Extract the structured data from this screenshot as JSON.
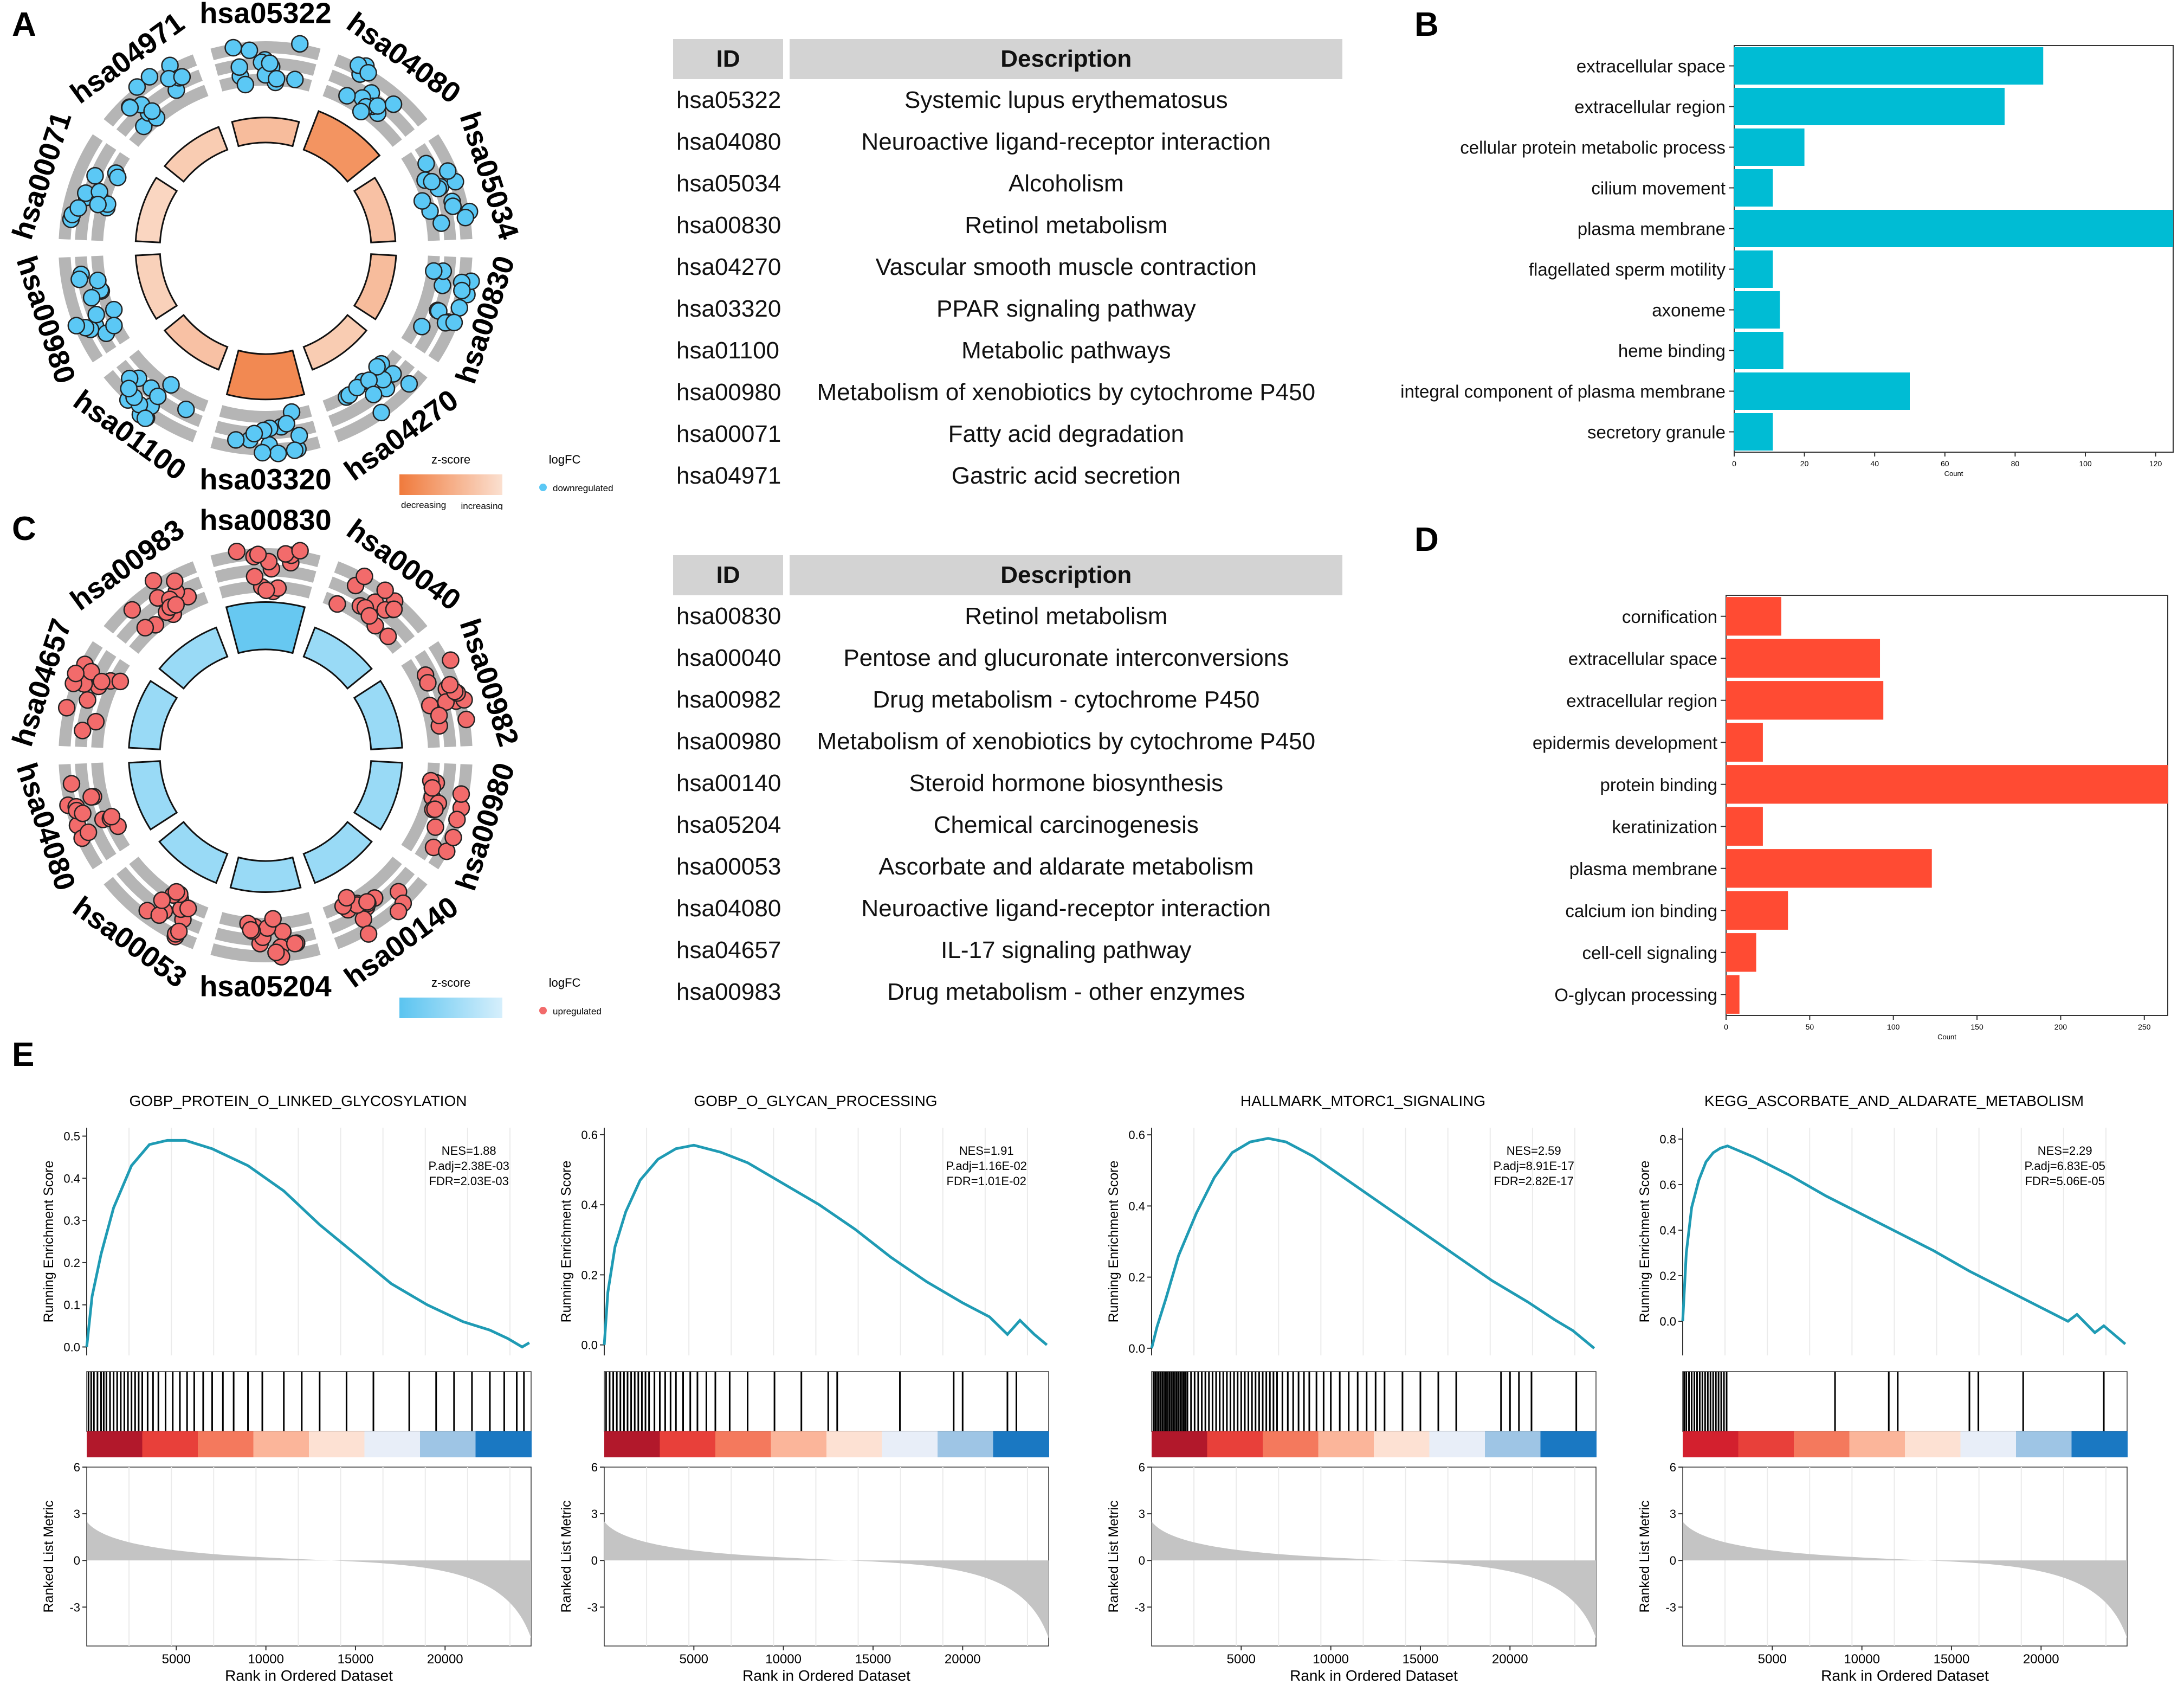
{
  "panel_letters": {
    "a": "A",
    "b": "B",
    "c": "C",
    "d": "D",
    "e": "E"
  },
  "circos_a": {
    "sectors": [
      "hsa05322",
      "hsa04080",
      "hsa05034",
      "hsa00830",
      "hsa04270",
      "hsa03320",
      "hsa01100",
      "hsa00980",
      "hsa00071",
      "hsa04971"
    ],
    "legend": {
      "zscore_label": "z-score",
      "logfc_label": "logFC",
      "decreasing": "decreasing",
      "increasing": "increasing",
      "point_label": "downregulated"
    },
    "colors": {
      "point": "#5bc8f5",
      "bar_light": "#fbe0d0",
      "bar_dark": "#f07a3c",
      "ring": "#b5b5b5"
    },
    "zscore_levels": [
      0.35,
      0.75,
      0.3,
      0.35,
      0.2,
      0.85,
      0.3,
      0.15,
      0.1,
      0.2
    ]
  },
  "circos_c": {
    "sectors": [
      "hsa00830",
      "hsa00040",
      "hsa00982",
      "hsa00980",
      "hsa00140",
      "hsa05204",
      "hsa00053",
      "hsa04080",
      "hsa04657",
      "hsa00983"
    ],
    "legend": {
      "zscore_label": "z-score",
      "logfc_label": "logFC",
      "decreasing": "decreasing",
      "increasing": "increasing",
      "point_label": "upregulated"
    },
    "colors": {
      "point": "#f26b6b",
      "bar_light": "#d6effc",
      "bar_dark": "#5bc4f0",
      "ring": "#b5b5b5"
    },
    "zscore_levels": [
      0.9,
      0.5,
      0.5,
      0.5,
      0.5,
      0.5,
      0.5,
      0.5,
      0.5,
      0.5
    ]
  },
  "table_a": {
    "headers": {
      "id": "ID",
      "description": "Description"
    },
    "rows": [
      {
        "id": "hsa05322",
        "desc": "Systemic lupus erythematosus"
      },
      {
        "id": "hsa04080",
        "desc": "Neuroactive ligand-receptor interaction"
      },
      {
        "id": "hsa05034",
        "desc": "Alcoholism"
      },
      {
        "id": "hsa00830",
        "desc": "Retinol metabolism"
      },
      {
        "id": "hsa04270",
        "desc": "Vascular smooth muscle contraction"
      },
      {
        "id": "hsa03320",
        "desc": "PPAR signaling pathway"
      },
      {
        "id": "hsa01100",
        "desc": "Metabolic pathways"
      },
      {
        "id": "hsa00980",
        "desc": "Metabolism of xenobiotics by cytochrome P450"
      },
      {
        "id": "hsa00071",
        "desc": "Fatty acid degradation"
      },
      {
        "id": "hsa04971",
        "desc": "Gastric acid secretion"
      }
    ]
  },
  "table_c": {
    "headers": {
      "id": "ID",
      "description": "Description"
    },
    "rows": [
      {
        "id": "hsa00830",
        "desc": "Retinol metabolism"
      },
      {
        "id": "hsa00040",
        "desc": "Pentose and glucuronate interconversions"
      },
      {
        "id": "hsa00982",
        "desc": "Drug metabolism - cytochrome P450"
      },
      {
        "id": "hsa00980",
        "desc": "Metabolism of xenobiotics by cytochrome P450"
      },
      {
        "id": "hsa00140",
        "desc": "Steroid hormone biosynthesis"
      },
      {
        "id": "hsa05204",
        "desc": "Chemical carcinogenesis"
      },
      {
        "id": "hsa00053",
        "desc": "Ascorbate and aldarate metabolism"
      },
      {
        "id": "hsa04080",
        "desc": "Neuroactive ligand-receptor interaction"
      },
      {
        "id": "hsa04657",
        "desc": "IL-17 signaling pathway"
      },
      {
        "id": "hsa00983",
        "desc": "Drug metabolism - other enzymes"
      }
    ]
  },
  "chart_data": [
    {
      "panel": "B",
      "type": "bar",
      "orientation": "horizontal",
      "categories": [
        "extracellular space",
        "extracellular region",
        "cellular protein metabolic process",
        "cilium movement",
        "plasma membrane",
        "flagellated sperm motility",
        "axoneme",
        "heme binding",
        "integral component of plasma membrane",
        "secretory granule"
      ],
      "values": [
        88,
        77,
        20,
        11,
        125,
        11,
        13,
        14,
        50,
        11
      ],
      "xlim": [
        0,
        125
      ],
      "xticks": [
        0,
        20,
        40,
        60,
        80,
        100,
        120
      ],
      "xlabel": "Count",
      "color": "#00bcd4"
    },
    {
      "panel": "D",
      "type": "bar",
      "orientation": "horizontal",
      "categories": [
        "cornification",
        "extracellular space",
        "extracellular region",
        "epidermis development",
        "protein binding",
        "keratinization",
        "plasma membrane",
        "calcium ion binding",
        "cell-cell signaling",
        "O-glycan processing"
      ],
      "values": [
        33,
        92,
        94,
        22,
        264,
        22,
        123,
        37,
        18,
        8
      ],
      "xlim": [
        0,
        264
      ],
      "xticks": [
        0,
        50,
        100,
        150,
        200,
        250
      ],
      "xlabel": "Count",
      "color": "#ff4b33"
    },
    {
      "panel": "E",
      "type": "line",
      "title": "GOBP_PROTEIN_O_LINKED_GLYCOSYLATION",
      "stats": [
        "NES=1.88",
        "P.adj=2.38E-03",
        "FDR=2.03E-03"
      ],
      "ylabel": "Running Enrichment Score",
      "ylim": [
        -0.02,
        0.52
      ],
      "yticks": [
        0.0,
        0.1,
        0.2,
        0.3,
        0.4,
        0.5
      ],
      "es_x": [
        0,
        300,
        800,
        1500,
        2500,
        3500,
        4500,
        5500,
        7000,
        9000,
        11000,
        13000,
        15000,
        17000,
        19000,
        21000,
        22500,
        23500,
        24300,
        24700
      ],
      "es_y": [
        0.0,
        0.12,
        0.22,
        0.33,
        0.43,
        0.48,
        0.49,
        0.49,
        0.47,
        0.43,
        0.37,
        0.29,
        0.22,
        0.15,
        0.1,
        0.06,
        0.04,
        0.02,
        0.0,
        0.01
      ],
      "hits": [
        100,
        250,
        400,
        600,
        800,
        950,
        1100,
        1300,
        1500,
        1700,
        1900,
        2100,
        2300,
        2500,
        2700,
        2900,
        3100,
        3400,
        3700,
        4000,
        4400,
        4800,
        5200,
        5600,
        6000,
        6500,
        7000,
        7600,
        8200,
        9000,
        9800,
        11000,
        12000,
        13000,
        14500,
        16000,
        18000,
        19500,
        20500,
        21500,
        22500,
        23300,
        24000,
        24400
      ],
      "heat_stops": [
        "#b2182b",
        "#e8403a",
        "#f4795d",
        "#fbb59a",
        "#fde1d3",
        "#e8eef8",
        "#9ec5e5",
        "#1a78c2"
      ],
      "metric_ylabel": "Ranked List Metric",
      "metric_yticks": [
        6,
        3,
        0,
        -3
      ],
      "xlabel": "Rank in Ordered Dataset",
      "xticks": [
        5000,
        10000,
        15000,
        20000
      ],
      "xmax": 24800
    },
    {
      "panel": "E",
      "type": "line",
      "title": "GOBP_O_GLYCAN_PROCESSING",
      "stats": [
        "NES=1.91",
        "P.adj=1.16E-02",
        "FDR=1.01E-02"
      ],
      "ylabel": "Running Enrichment Score",
      "ylim": [
        -0.03,
        0.62
      ],
      "yticks": [
        0.0,
        0.2,
        0.4,
        0.6
      ],
      "es_x": [
        0,
        200,
        600,
        1200,
        2000,
        3000,
        4000,
        5000,
        6500,
        8000,
        10000,
        12000,
        14000,
        16000,
        18000,
        20000,
        21500,
        22500,
        23200,
        24000,
        24700
      ],
      "es_y": [
        0.0,
        0.15,
        0.28,
        0.38,
        0.47,
        0.53,
        0.56,
        0.57,
        0.55,
        0.52,
        0.46,
        0.4,
        0.33,
        0.25,
        0.18,
        0.12,
        0.08,
        0.03,
        0.07,
        0.03,
        0.0
      ],
      "hits": [
        100,
        300,
        500,
        700,
        900,
        1100,
        1300,
        1500,
        1700,
        1900,
        2100,
        2300,
        2500,
        2800,
        3100,
        3400,
        3700,
        4000,
        4400,
        4800,
        5200,
        5700,
        6200,
        7000,
        8000,
        9500,
        11000,
        12500,
        13000,
        16500,
        19500,
        20000,
        22500,
        23000
      ],
      "heat_stops": [
        "#b2182b",
        "#e8403a",
        "#f4795d",
        "#fbb59a",
        "#fde1d3",
        "#e8eef8",
        "#9ec5e5",
        "#1a78c2"
      ],
      "metric_ylabel": "Ranked List Metric",
      "metric_yticks": [
        6,
        3,
        0,
        -3
      ],
      "xlabel": "Rank in Ordered Dataset",
      "xticks": [
        5000,
        10000,
        15000,
        20000
      ],
      "xmax": 24800
    },
    {
      "panel": "E",
      "type": "line",
      "title": "HALLMARK_MTORC1_SIGNALING",
      "stats": [
        "NES=2.59",
        "P.adj=8.91E-17",
        "FDR=2.82E-17"
      ],
      "ylabel": "Running Enrichment Score",
      "ylim": [
        -0.02,
        0.62
      ],
      "yticks": [
        0.0,
        0.2,
        0.4,
        0.6
      ],
      "es_x": [
        0,
        300,
        800,
        1500,
        2500,
        3500,
        4500,
        5500,
        6500,
        7500,
        9000,
        11000,
        13000,
        15000,
        17000,
        19000,
        21000,
        22500,
        23500,
        24700
      ],
      "es_y": [
        0.0,
        0.06,
        0.14,
        0.26,
        0.38,
        0.48,
        0.55,
        0.58,
        0.59,
        0.58,
        0.54,
        0.47,
        0.4,
        0.33,
        0.26,
        0.19,
        0.13,
        0.08,
        0.05,
        0.0
      ],
      "hits": [
        100,
        200,
        300,
        400,
        500,
        600,
        700,
        800,
        900,
        1000,
        1100,
        1200,
        1300,
        1400,
        1500,
        1600,
        1700,
        1800,
        1900,
        2000,
        2200,
        2400,
        2600,
        2800,
        3000,
        3200,
        3400,
        3600,
        3800,
        4000,
        4200,
        4400,
        4600,
        4800,
        5000,
        5200,
        5400,
        5600,
        5800,
        6000,
        6200,
        6400,
        6600,
        6800,
        7000,
        7300,
        7600,
        7900,
        8200,
        8500,
        8800,
        9200,
        9600,
        10000,
        10500,
        11000,
        11500,
        12000,
        12500,
        13000,
        14000,
        15000,
        16000,
        17000,
        19500,
        20000,
        20500,
        21200,
        23700
      ],
      "heat_stops": [
        "#b2182b",
        "#e8403a",
        "#f4795d",
        "#fbb59a",
        "#fde1d3",
        "#e8eef8",
        "#9ec5e5",
        "#1a78c2"
      ],
      "metric_ylabel": "Ranked List Metric",
      "metric_yticks": [
        6,
        3,
        0,
        -3
      ],
      "xlabel": "Rank in Ordered Dataset",
      "xticks": [
        5000,
        10000,
        15000,
        20000
      ],
      "xmax": 24800
    },
    {
      "panel": "E",
      "type": "line",
      "title": "KEGG_ASCORBATE_AND_ALDARATE_METABOLISM",
      "stats": [
        "NES=2.29",
        "P.adj=6.83E-05",
        "FDR=5.06E-05"
      ],
      "ylabel": "Running Enrichment Score",
      "ylim": [
        -0.15,
        0.85
      ],
      "yticks": [
        0.0,
        0.2,
        0.4,
        0.6,
        0.8
      ],
      "es_x": [
        0,
        200,
        500,
        900,
        1300,
        1700,
        2100,
        2500,
        4000,
        6000,
        8000,
        10000,
        12000,
        14000,
        16000,
        18000,
        20000,
        21500,
        22000,
        23000,
        23500,
        24700
      ],
      "es_y": [
        0.0,
        0.3,
        0.5,
        0.62,
        0.7,
        0.74,
        0.76,
        0.77,
        0.72,
        0.64,
        0.55,
        0.47,
        0.39,
        0.31,
        0.22,
        0.14,
        0.06,
        0.0,
        0.03,
        -0.05,
        -0.02,
        -0.1
      ],
      "hits": [
        80,
        200,
        350,
        500,
        650,
        800,
        950,
        1100,
        1250,
        1400,
        1550,
        1700,
        1850,
        2000,
        2150,
        2300,
        2450,
        8500,
        11500,
        12000,
        16000,
        16500,
        19000,
        23500
      ],
      "heat_stops": [
        "#d3202e",
        "#e8403a",
        "#f4795d",
        "#fbb59a",
        "#fde1d3",
        "#e8eef8",
        "#9ec5e5",
        "#1a78c2"
      ],
      "metric_ylabel": "Ranked List Metric",
      "metric_yticks": [
        6,
        3,
        0,
        -3
      ],
      "xlabel": "Rank in Ordered Dataset",
      "xticks": [
        5000,
        10000,
        15000,
        20000
      ],
      "xmax": 24800
    }
  ]
}
